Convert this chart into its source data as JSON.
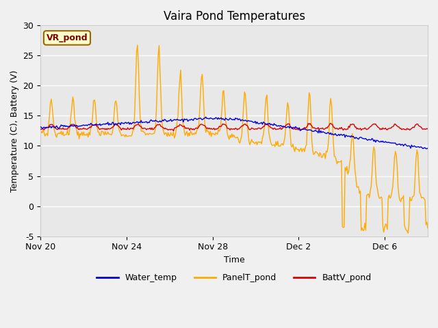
{
  "title": "Vaira Pond Temperatures",
  "xlabel": "Time",
  "ylabel": "Temperature (C), Battery (V)",
  "ylim": [
    -5,
    30
  ],
  "background_color": "#f0f0f0",
  "plot_bg_color": "#e8e8e8",
  "water_temp_color": "#0000dd",
  "panel_temp_color": "#ffaa00",
  "batt_color": "#dd0000",
  "annotation_text": "VR_pond",
  "annotation_bg": "#ffffcc",
  "annotation_border": "#996600",
  "annotation_text_color": "#800000",
  "x_tick_labels": [
    "Nov 20",
    "Nov 24",
    "Nov 28",
    "Dec 2",
    "Dec 6"
  ],
  "x_tick_positions": [
    0,
    4,
    8,
    12,
    16
  ],
  "y_ticks": [
    -5,
    0,
    5,
    10,
    15,
    20,
    25,
    30
  ],
  "legend_labels": [
    "Water_temp",
    "PanelT_pond",
    "BattV_pond"
  ],
  "legend_colors": [
    "#0000dd",
    "#ffaa00",
    "#dd0000"
  ],
  "line_width": 1.0,
  "title_fontsize": 12,
  "label_fontsize": 9,
  "tick_fontsize": 9,
  "legend_fontsize": 9
}
